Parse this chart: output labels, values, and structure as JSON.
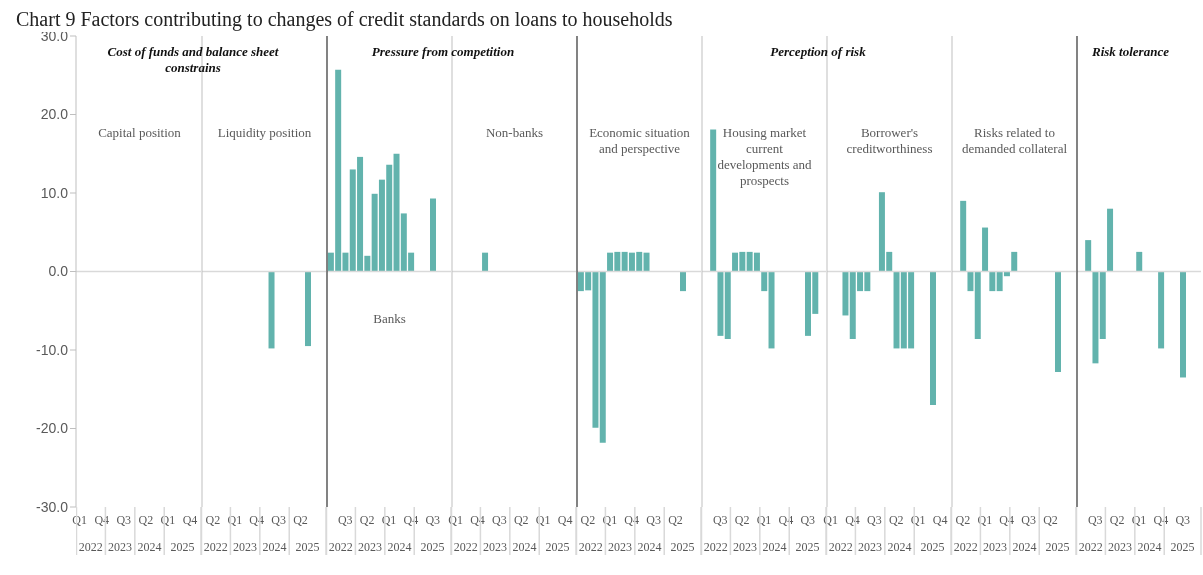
{
  "chart_data": [
    {
      "type": "other",
      "title": "Chart 9 Factors contributing to changes of credit standards on loans to households"
    },
    {
      "type": "other",
      "title": "Cost of funds and balance sheet constrains"
    },
    {
      "type": "bar",
      "subtitle": "Capital position",
      "categories": [
        "Q1",
        null,
        null,
        "Q4",
        null,
        null,
        "Q3",
        null,
        null,
        "Q2",
        null,
        null,
        "Q1",
        null,
        null,
        "Q4",
        null
      ],
      "values": [
        null,
        null,
        null,
        null,
        null,
        null,
        null,
        null,
        null,
        null,
        null,
        null,
        null,
        null,
        null,
        null,
        null
      ],
      "color": "#62b3ad",
      "ylim": [
        -30,
        30
      ],
      "yticks": [
        {
          "value": -30,
          "label": "-30.0"
        },
        {
          "value": -20,
          "label": "-20.0"
        },
        {
          "value": -10,
          "label": "-10.0"
        },
        {
          "value": 0,
          "label": "0.0"
        },
        {
          "value": 10,
          "label": "10.0"
        },
        {
          "value": 20,
          "label": "20.0"
        },
        {
          "value": 30,
          "label": "30.0"
        }
      ],
      "ref_lines": [
        {
          "axis": "y",
          "value": 0,
          "color": "#d9d9d9"
        }
      ],
      "annotations": [
        "2022",
        "2023",
        "2024",
        "2025"
      ]
    },
    {
      "type": "bar",
      "subtitle": "Liquidity position",
      "categories": [
        null,
        "Q2",
        null,
        null,
        "Q1",
        null,
        null,
        "Q4",
        null,
        null,
        "Q3",
        null,
        null,
        "Q2",
        null,
        null,
        null
      ],
      "values": [
        null,
        null,
        null,
        null,
        null,
        null,
        null,
        null,
        null,
        -9.8,
        null,
        null,
        null,
        null,
        -9.5,
        null,
        null
      ],
      "color": "#62b3ad",
      "ylim": [
        -30,
        30
      ],
      "ref_lines": [
        {
          "axis": "y",
          "value": 0,
          "color": "#d9d9d9"
        }
      ],
      "annotations": [
        "2022",
        "2023",
        "2024",
        "2025"
      ],
      "tick_labels": "x"
    },
    {
      "type": "other",
      "title": "Pressure from competition"
    },
    {
      "type": "bar",
      "subtitle": "Banks",
      "categories": [
        null,
        null,
        "Q3",
        null,
        null,
        "Q2",
        null,
        null,
        "Q1",
        null,
        null,
        "Q4",
        null,
        null,
        "Q3",
        null,
        null
      ],
      "values": [
        2.4,
        25.7,
        2.4,
        13.0,
        14.6,
        2.0,
        9.9,
        11.7,
        13.6,
        15.0,
        7.4,
        2.4,
        null,
        null,
        9.3,
        null,
        null
      ],
      "color": "#62b3ad",
      "ylim": [
        -30,
        30
      ],
      "ref_lines": [
        {
          "axis": "y",
          "value": 0,
          "color": "#d9d9d9"
        }
      ],
      "annotations": [
        "2022",
        "2023",
        "2024",
        "2025"
      ],
      "tick_labels": "x"
    },
    {
      "type": "bar",
      "subtitle": "Non-banks",
      "categories": [
        "Q1",
        null,
        null,
        "Q4",
        null,
        null,
        "Q3",
        null,
        null,
        "Q2",
        null,
        null,
        "Q1",
        null,
        null,
        "Q4",
        null
      ],
      "values": [
        null,
        null,
        null,
        null,
        2.4,
        null,
        null,
        null,
        null,
        null,
        null,
        null,
        null,
        null,
        null,
        null,
        null
      ],
      "color": "#62b3ad",
      "ylim": [
        -30,
        30
      ],
      "ref_lines": [
        {
          "axis": "y",
          "value": 0,
          "color": "#d9d9d9"
        }
      ],
      "annotations": [
        "2022",
        "2023",
        "2024",
        "2025"
      ],
      "tick_labels": "x"
    },
    {
      "type": "other",
      "title": "Perception of risk"
    },
    {
      "type": "bar",
      "subtitle": "Economic situation  and perspective",
      "categories": [
        null,
        "Q2",
        null,
        null,
        "Q1",
        null,
        null,
        "Q4",
        null,
        null,
        "Q3",
        null,
        null,
        "Q2",
        null,
        null,
        null
      ],
      "values": [
        -2.5,
        -2.4,
        -19.9,
        -21.8,
        2.4,
        2.5,
        2.5,
        2.4,
        2.5,
        2.4,
        null,
        null,
        null,
        null,
        -2.5,
        null,
        null
      ],
      "color": "#62b3ad",
      "ylim": [
        -30,
        30
      ],
      "ref_lines": [
        {
          "axis": "y",
          "value": 0,
          "color": "#d9d9d9"
        }
      ],
      "annotations": [
        "2022",
        "2023",
        "2024",
        "2025"
      ],
      "tick_labels": "x"
    },
    {
      "type": "bar",
      "subtitle": "Housing market current developments and prospects",
      "categories": [
        null,
        null,
        "Q3",
        null,
        null,
        "Q2",
        null,
        null,
        "Q1",
        null,
        null,
        "Q4",
        null,
        null,
        "Q3",
        null,
        null
      ],
      "values": [
        null,
        18.1,
        -8.2,
        -8.6,
        2.4,
        2.5,
        2.5,
        2.4,
        -2.5,
        -9.8,
        null,
        null,
        null,
        null,
        -8.2,
        -5.4,
        null
      ],
      "color": "#62b3ad",
      "ylim": [
        -30,
        30
      ],
      "ref_lines": [
        {
          "axis": "y",
          "value": 0,
          "color": "#d9d9d9"
        }
      ],
      "annotations": [
        "2022",
        "2023",
        "2024",
        "2025"
      ],
      "tick_labels": "x"
    },
    {
      "type": "bar",
      "subtitle": "Borrower's creditworthiness",
      "categories": [
        "Q1",
        null,
        null,
        "Q4",
        null,
        null,
        "Q3",
        null,
        null,
        "Q2",
        null,
        null,
        "Q1",
        null,
        null,
        "Q4",
        null
      ],
      "values": [
        null,
        null,
        -5.6,
        -8.6,
        -2.5,
        -2.5,
        null,
        10.1,
        2.5,
        -9.8,
        -9.8,
        -9.8,
        null,
        null,
        -17.0,
        null,
        null
      ],
      "color": "#62b3ad",
      "ylim": [
        -30,
        30
      ],
      "ref_lines": [
        {
          "axis": "y",
          "value": 0,
          "color": "#d9d9d9"
        }
      ],
      "annotations": [
        "2022",
        "2023",
        "2024",
        "2025"
      ],
      "tick_labels": "x"
    },
    {
      "type": "bar",
      "subtitle": "Risks related to demanded collateral",
      "categories": [
        null,
        "Q2",
        null,
        null,
        "Q1",
        null,
        null,
        "Q4",
        null,
        null,
        "Q3",
        null,
        null,
        "Q2",
        null,
        null,
        null
      ],
      "values": [
        null,
        9.0,
        -2.5,
        -8.6,
        5.6,
        -2.5,
        -2.5,
        -0.6,
        2.5,
        null,
        null,
        null,
        null,
        null,
        -12.8,
        null,
        null
      ],
      "color": "#62b3ad",
      "ylim": [
        -30,
        30
      ],
      "ref_lines": [
        {
          "axis": "y",
          "value": 0,
          "color": "#d9d9d9"
        }
      ],
      "annotations": [
        "2022",
        "2023",
        "2024",
        "2025"
      ],
      "tick_labels": "x"
    },
    {
      "type": "other",
      "title": "Risk tolerance"
    },
    {
      "type": "bar",
      "categories": [
        null,
        null,
        "Q3",
        null,
        null,
        "Q2",
        null,
        null,
        "Q1",
        null,
        null,
        "Q4",
        null,
        null,
        "Q3",
        null,
        null
      ],
      "values": [
        null,
        4.0,
        -11.7,
        -8.6,
        8.0,
        null,
        null,
        null,
        2.5,
        null,
        null,
        -9.8,
        null,
        null,
        -13.5,
        null,
        null
      ],
      "color": "#62b3ad",
      "ylim": [
        -30,
        30
      ],
      "ref_lines": [
        {
          "axis": "y",
          "value": 0,
          "color": "#d9d9d9"
        }
      ],
      "annotations": [
        "2022",
        "2023",
        "2024",
        "2025"
      ],
      "tick_labels": "x"
    }
  ]
}
